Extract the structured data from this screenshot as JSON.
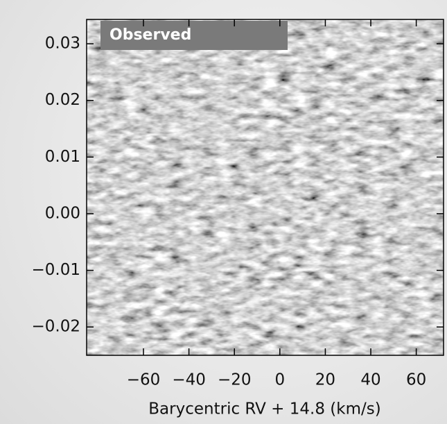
{
  "chart_data": {
    "type": "image",
    "label": "Observed",
    "xlabel": "Barycentric RV + 14.8 (km/s)",
    "xlim": [
      -85,
      72
    ],
    "ylim": [
      -0.025,
      0.0343
    ],
    "xticks": [
      {
        "value": -60,
        "label": "−60"
      },
      {
        "value": -40,
        "label": "−40"
      },
      {
        "value": -20,
        "label": "−20"
      },
      0,
      20,
      40,
      60
    ],
    "yticks": [
      {
        "value": -0.02,
        "label": "−0.02"
      },
      {
        "value": -0.01,
        "label": "−0.01"
      },
      {
        "value": 0,
        "label": "0.00"
      },
      0.01,
      0.02,
      0.03
    ]
  }
}
